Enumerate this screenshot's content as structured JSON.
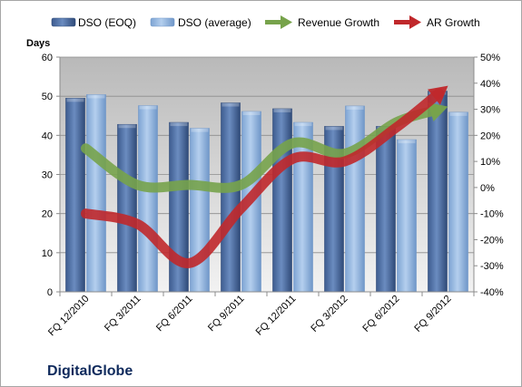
{
  "chart_data": {
    "type": "bar",
    "company": "DigitalGlobe",
    "categories": [
      "FQ 12/2010",
      "FQ 3/2011",
      "FQ 6/2011",
      "FQ 9/2011",
      "FQ 12/2011",
      "FQ 3/2012",
      "FQ 6/2012",
      "FQ 9/2012"
    ],
    "y_left": {
      "title": "Days",
      "min": 0,
      "max": 60,
      "step": 10
    },
    "y_right": {
      "min": -40,
      "max": 50,
      "step": 10,
      "format": "percent"
    },
    "bar_series": [
      {
        "name": "DSO (EOQ)",
        "color": "#4f6fa3",
        "values": [
          49.5,
          42.8,
          43.3,
          48.3,
          46.8,
          42.3,
          42.3,
          51.3
        ]
      },
      {
        "name": "DSO (average)",
        "color": "#93b6e0",
        "values": [
          50.4,
          47.6,
          41.8,
          46.1,
          43.3,
          47.5,
          38.9,
          45.9
        ]
      }
    ],
    "line_series": [
      {
        "name": "Revenue Growth",
        "color": "#77a34b",
        "axis": "right",
        "values": [
          15,
          1,
          1,
          1,
          17,
          13,
          25,
          31
        ]
      },
      {
        "name": "AR Growth",
        "color": "#c0282b",
        "axis": "right",
        "values": [
          -10,
          -14,
          -29,
          -8,
          11,
          10,
          23,
          39
        ]
      }
    ],
    "grid": true,
    "legend_position": "top"
  }
}
